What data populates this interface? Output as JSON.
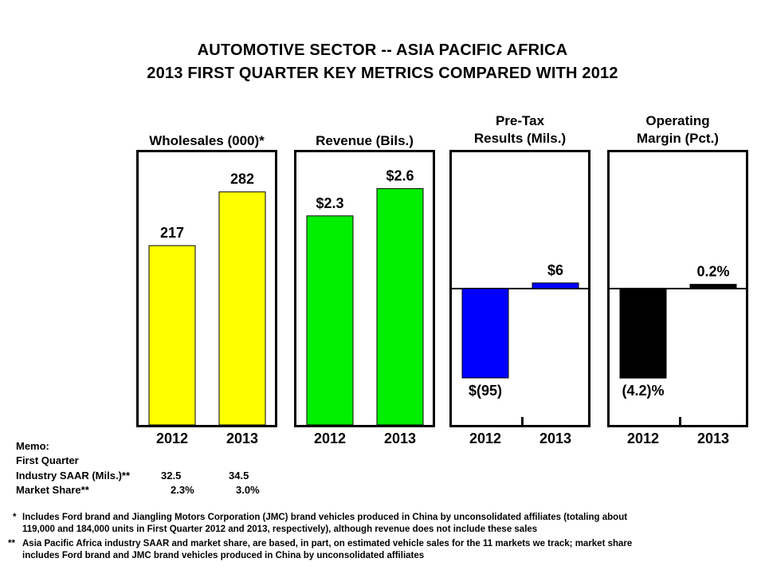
{
  "title": {
    "line1": "AUTOMOTIVE SECTOR -- ASIA PACIFIC AFRICA",
    "line2": "2013 FIRST QUARTER KEY METRICS COMPARED WITH 2012"
  },
  "chart_data": [
    {
      "type": "bar",
      "title": "Wholesales (000)*",
      "title_lines": [
        "Wholesales (000)*"
      ],
      "categories": [
        "2012",
        "2013"
      ],
      "values": [
        217,
        282
      ],
      "labels": [
        "217",
        "282"
      ],
      "color": "#FFFF00",
      "ylim": [
        0,
        330
      ],
      "grid": false
    },
    {
      "type": "bar",
      "title": "Revenue (Bils.)",
      "title_lines": [
        "Revenue (Bils.)"
      ],
      "categories": [
        "2012",
        "2013"
      ],
      "values": [
        2.3,
        2.6
      ],
      "labels": [
        "$2.3",
        "$2.6"
      ],
      "color": "#00EE00",
      "ylim": [
        0,
        3.0
      ],
      "grid": false
    },
    {
      "type": "bar",
      "title": "Pre-Tax Results (Mils.)",
      "title_lines": [
        "Pre-Tax",
        "Results (Mils.)"
      ],
      "categories": [
        "2012",
        "2013"
      ],
      "values": [
        -95,
        6
      ],
      "labels": [
        "$(95)",
        "$6"
      ],
      "color": "#0000FF",
      "ylim": [
        -145,
        145
      ],
      "grid": false
    },
    {
      "type": "bar",
      "title": "Operating Margin (Pct.)",
      "title_lines": [
        "Operating",
        "Margin (Pct.)"
      ],
      "categories": [
        "2012",
        "2013"
      ],
      "values": [
        -4.2,
        0.2
      ],
      "labels": [
        "(4.2)%",
        "0.2%"
      ],
      "color": "#000000",
      "ylim": [
        -6.4,
        6.4
      ],
      "grid": false
    }
  ],
  "memo": {
    "heading": "Memo:",
    "subheading": "First Quarter",
    "rows": [
      {
        "label": "Industry SAAR (Mils.)**",
        "v2012": "32.5",
        "v2013": "34.5"
      },
      {
        "label": "Market Share**",
        "v2012": "2.3%",
        "v2013": "3.0%"
      }
    ]
  },
  "footnotes": {
    "star_mark": "*",
    "star_line1": "Includes Ford brand and Jiangling Motors Corporation (JMC) brand vehicles produced in China by unconsolidated affiliates (totaling about",
    "star_line2": "119,000 and 184,000 units in First Quarter 2012 and 2013,   respectively), although revenue does not include these sales",
    "dstar_mark": "**",
    "dstar_line1": "Asia Pacific Africa industry  SAAR  and market share, are based, in part, on estimated vehicle sales for the 11 markets we track; market share",
    "dstar_line2": "includes Ford brand and JMC brand vehicles produced in China by unconsolidated affiliates"
  }
}
